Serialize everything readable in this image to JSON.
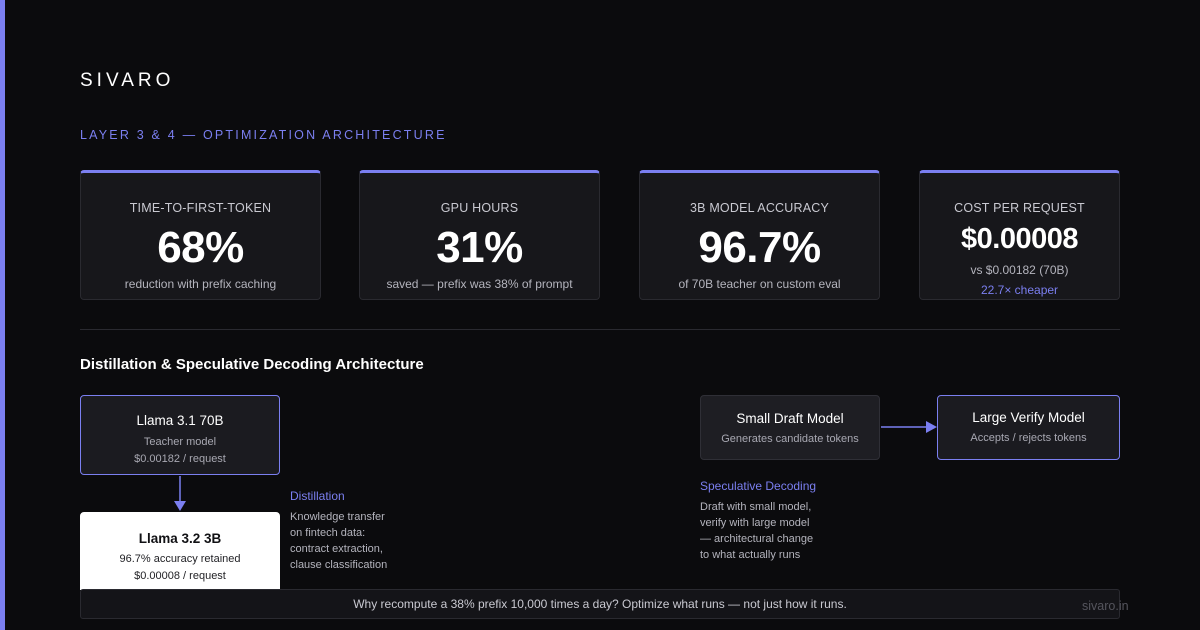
{
  "brand": "SIVARO",
  "section_label": "LAYER 3 & 4 — OPTIMIZATION ARCHITECTURE",
  "metrics": [
    {
      "label": "TIME-TO-FIRST-TOKEN",
      "value": "68%",
      "sub": "reduction with prefix caching"
    },
    {
      "label": "GPU HOURS",
      "value": "31%",
      "sub": "saved — prefix was 38% of prompt"
    },
    {
      "label": "3B MODEL ACCURACY",
      "value": "96.7%",
      "sub": "of 70B teacher on custom eval"
    },
    {
      "label": "COST PER REQUEST",
      "value": "$0.00008",
      "sub": "vs $0.00182 (70B)",
      "extra": "22.7× cheaper"
    }
  ],
  "architecture": {
    "title": "Distillation & Speculative Decoding Architecture",
    "teacher": {
      "title": "Llama 3.1 70B",
      "line1": "Teacher model",
      "line2": "$0.00182 / request"
    },
    "student": {
      "title": "Llama 3.2 3B",
      "line1": "96.7% accuracy retained",
      "line2": "$0.00008 / request"
    },
    "distillation": {
      "title": "Distillation",
      "lines": [
        "Knowledge transfer",
        "on fintech data:",
        "contract extraction,",
        "clause classification"
      ]
    },
    "draft": {
      "title": "Small Draft Model",
      "line1": "Generates candidate tokens"
    },
    "verify": {
      "title": "Large Verify Model",
      "line1": "Accepts / rejects tokens"
    },
    "speculative": {
      "title": "Speculative Decoding",
      "lines": [
        "Draft with small model,",
        "verify with large model",
        "— architectural change",
        "to what actually runs"
      ]
    }
  },
  "banner": "Why recompute a 38% prefix 10,000 times a day? Optimize what runs — not just how it runs.",
  "site": "sivaro.in",
  "colors": {
    "accent": "#7b7ff0",
    "background": "#0b0b0d",
    "card": "#17171b"
  }
}
